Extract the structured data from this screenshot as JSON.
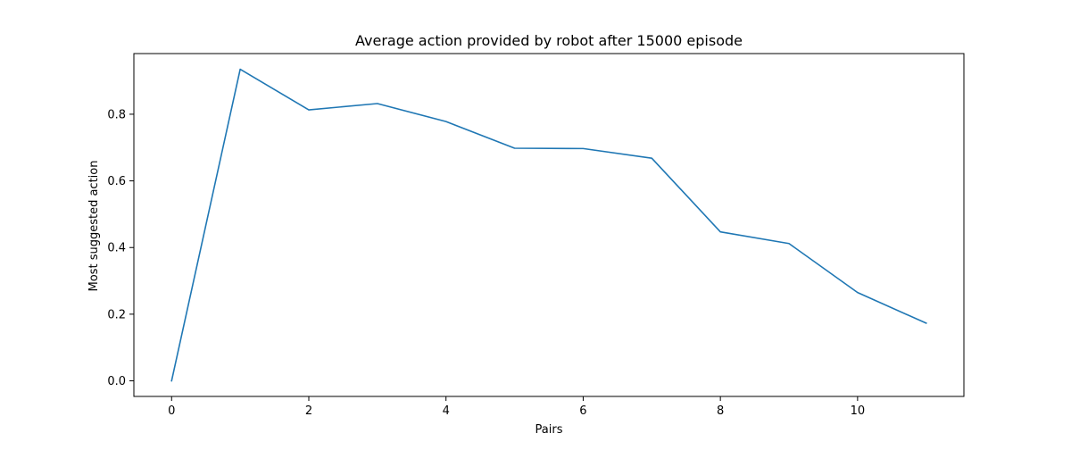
{
  "chart_data": {
    "type": "line",
    "title": "Average action provided by robot after 15000 episode",
    "xlabel": "Pairs",
    "ylabel": "Most suggested action",
    "x": [
      0,
      1,
      2,
      3,
      4,
      5,
      6,
      7,
      8,
      9,
      10,
      11
    ],
    "series": [
      {
        "values": [
          0.0,
          0.935,
          0.813,
          0.832,
          0.778,
          0.698,
          0.697,
          0.668,
          0.447,
          0.412,
          0.265,
          0.173
        ],
        "color": "#1f77b4"
      }
    ],
    "xlim": [
      -0.55,
      11.55
    ],
    "ylim": [
      -0.0468,
      0.982
    ],
    "xticks": [
      0,
      2,
      4,
      6,
      8,
      10
    ],
    "yticks": [
      0.0,
      0.2,
      0.4,
      0.6,
      0.8
    ],
    "xtick_labels": [
      "0",
      "2",
      "4",
      "6",
      "8",
      "10"
    ],
    "ytick_labels": [
      "0.0",
      "0.2",
      "0.4",
      "0.6",
      "0.8"
    ],
    "grid": false,
    "legend": "none"
  }
}
